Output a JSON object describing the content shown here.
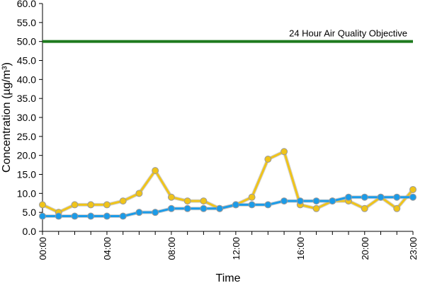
{
  "chart_data": {
    "type": "line",
    "xlabel": "Time",
    "ylabel": "Concentration (µg/m³)",
    "ylim": [
      0,
      60
    ],
    "yticks": [
      "0.0",
      "5.0",
      "10.0",
      "15.0",
      "20.0",
      "25.0",
      "30.0",
      "35.0",
      "40.0",
      "45.0",
      "50.0",
      "55.0",
      "60.0"
    ],
    "xlim": [
      0,
      23
    ],
    "x": [
      0,
      1,
      2,
      3,
      4,
      5,
      6,
      7,
      8,
      9,
      10,
      11,
      12,
      13,
      14,
      15,
      16,
      17,
      18,
      19,
      20,
      21,
      22,
      23
    ],
    "xticks": [
      {
        "x": 0,
        "label": "00:00"
      },
      {
        "x": 4,
        "label": "04:00"
      },
      {
        "x": 8,
        "label": "08:00"
      },
      {
        "x": 12,
        "label": "12:00"
      },
      {
        "x": 16,
        "label": "16:00"
      },
      {
        "x": 20,
        "label": "20:00"
      },
      {
        "x": 23,
        "label": "23:00"
      }
    ],
    "grid": false,
    "series": [
      {
        "color": "#f0c419",
        "values": [
          7,
          5,
          7,
          7,
          7,
          8,
          10,
          16,
          9,
          8,
          8,
          6,
          7,
          9,
          19,
          21,
          7,
          6,
          8,
          8,
          6,
          9,
          6,
          11
        ]
      },
      {
        "color": "#1b9be8",
        "values": [
          4,
          4,
          4,
          4,
          4,
          4,
          5,
          5,
          6,
          6,
          6,
          6,
          7,
          7,
          7,
          8,
          8,
          8,
          8,
          9,
          9,
          9,
          9,
          9
        ]
      }
    ],
    "reference_line": {
      "y": 50,
      "label": "24 Hour Air Quality Objective",
      "color": "#1e7a1e"
    }
  }
}
